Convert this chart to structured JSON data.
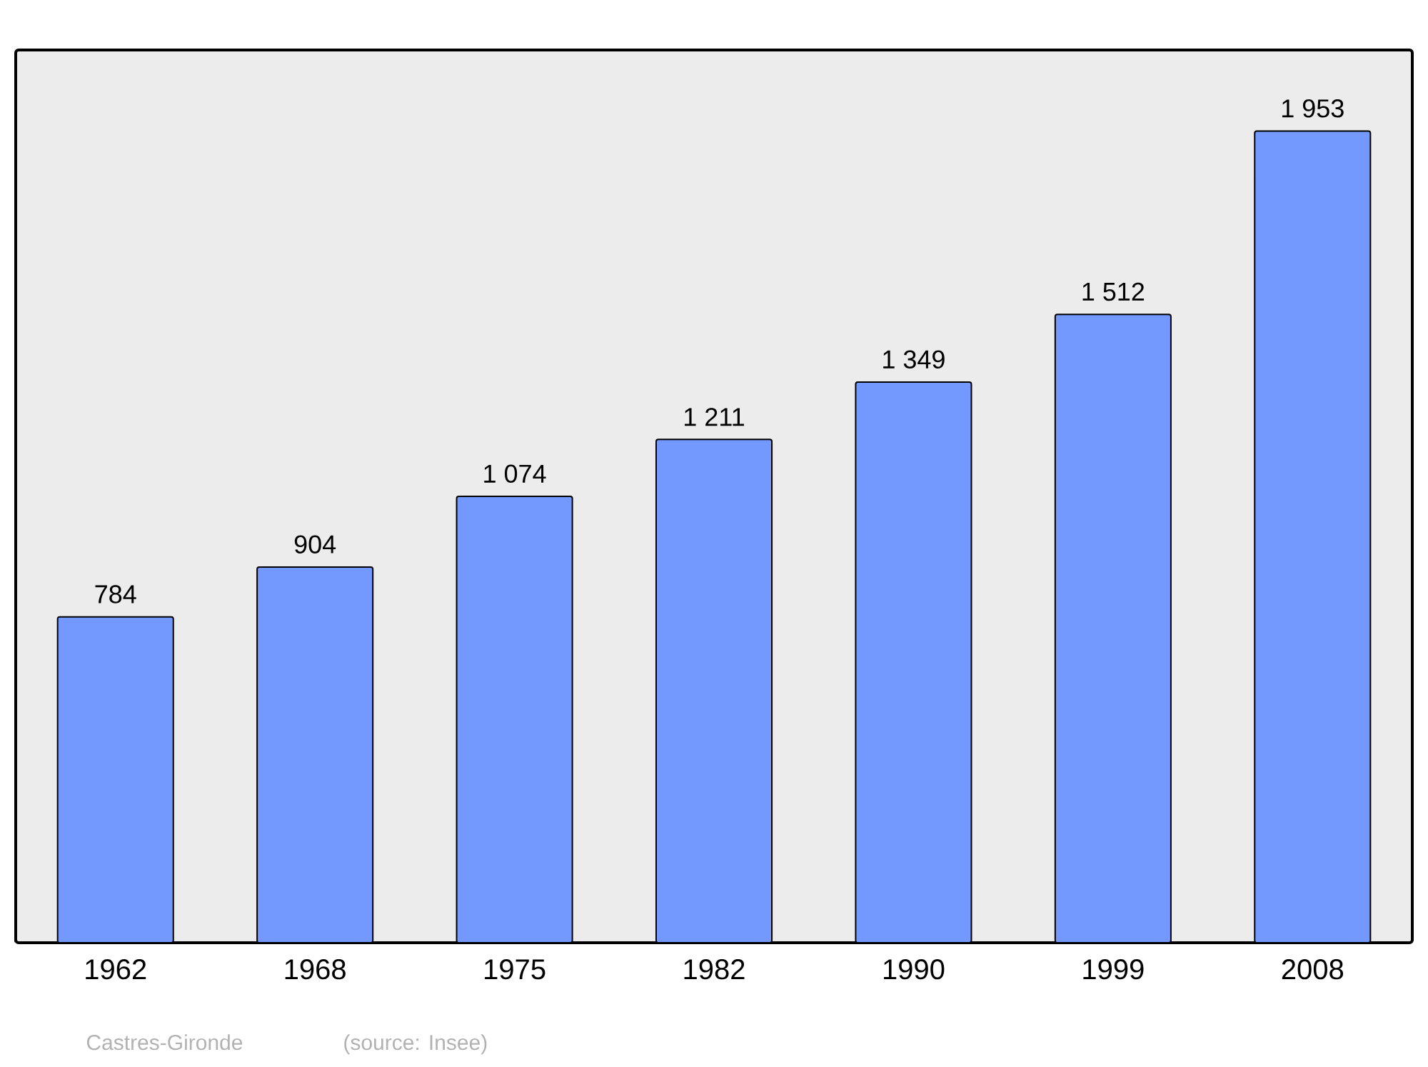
{
  "chart_data": {
    "type": "bar",
    "categories": [
      "1962",
      "1968",
      "1975",
      "1982",
      "1990",
      "1999",
      "2008"
    ],
    "values": [
      784,
      904,
      1074,
      1211,
      1349,
      1512,
      1953
    ],
    "value_labels": [
      "784",
      "904",
      "1 074",
      "1 211",
      "1 349",
      "1 512",
      "1 953"
    ],
    "color": "#7399ff",
    "annotations": [
      "Castres-Gironde",
      "(source: Insee)"
    ]
  }
}
